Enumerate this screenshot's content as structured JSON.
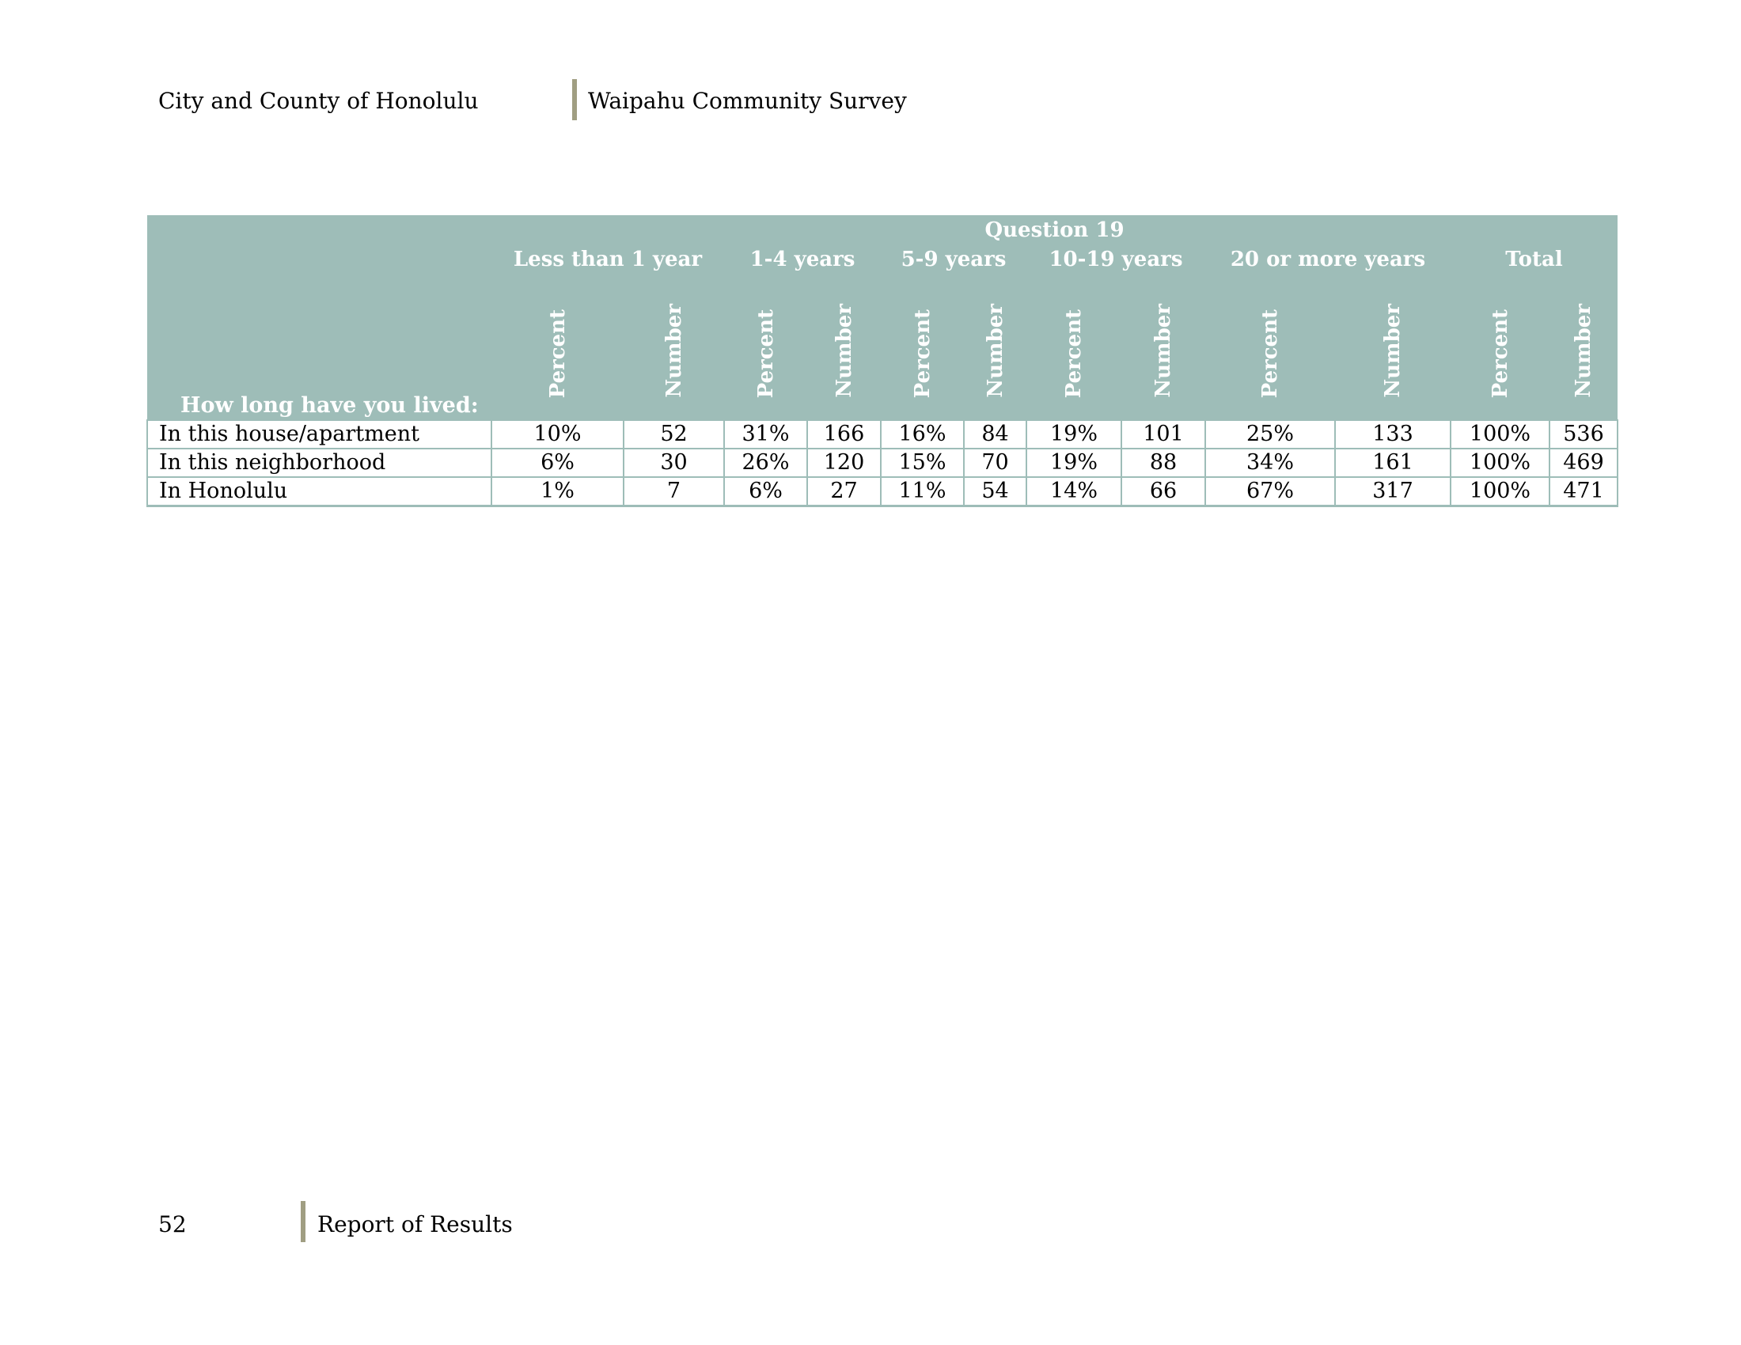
{
  "header": {
    "left": "City and County of Honolulu",
    "right": "Waipahu Community Survey"
  },
  "footer": {
    "page_number": "52",
    "section": "Report of Results"
  },
  "table": {
    "question": "Question 19",
    "row_header": "How long have you lived:",
    "groups": [
      "Less than 1 year",
      "1-4 years",
      "5-9 years",
      "10-19 years",
      "20 or more years",
      "Total"
    ],
    "sub_percent": "Percent",
    "sub_number": "Number",
    "rows": [
      {
        "label": "In this house/apartment",
        "cells": [
          "10%",
          "52",
          "31%",
          "166",
          "16%",
          "84",
          "19%",
          "101",
          "25%",
          "133",
          "100%",
          "536"
        ]
      },
      {
        "label": "In this neighborhood",
        "cells": [
          "6%",
          "30",
          "26%",
          "120",
          "15%",
          "70",
          "19%",
          "88",
          "34%",
          "161",
          "100%",
          "469"
        ]
      },
      {
        "label": "In Honolulu",
        "cells": [
          "1%",
          "7",
          "6%",
          "27",
          "11%",
          "54",
          "14%",
          "66",
          "67%",
          "317",
          "100%",
          "471"
        ]
      }
    ]
  },
  "colors": {
    "header_fill": "#9ebdb8",
    "accent_bar": "#a09e82"
  }
}
